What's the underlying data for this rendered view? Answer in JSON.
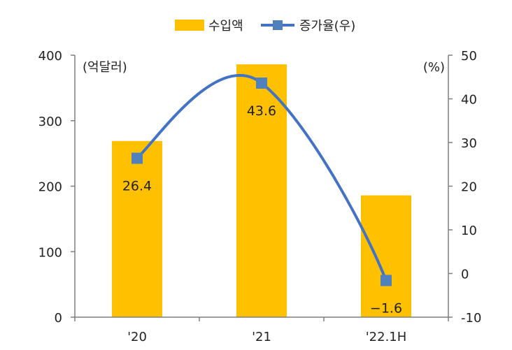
{
  "colors": {
    "bar": "#FFC000",
    "line": "#4472C4",
    "marker": "#4F81BD",
    "axis": "#7F7F7F",
    "text": "#222222"
  },
  "chart_data": {
    "type": "bar",
    "title": "",
    "categories": [
      "'20",
      "'21",
      "'22.1H"
    ],
    "series": [
      {
        "name": "수입액",
        "type": "bar",
        "axis": "left",
        "values": [
          269,
          386,
          186
        ]
      },
      {
        "name": "증가율(우)",
        "type": "line",
        "axis": "right",
        "values": [
          26.4,
          43.6,
          -1.6
        ],
        "data_labels": [
          "26.4",
          "43.6",
          "−1.6"
        ]
      }
    ],
    "y_left": {
      "label": "(억달러)",
      "ylim": [
        0,
        400
      ],
      "ticks": [
        0,
        100,
        200,
        300,
        400
      ]
    },
    "y_right": {
      "label": "(%)",
      "ylim": [
        -10,
        50
      ],
      "ticks": [
        -10,
        0,
        10,
        20,
        30,
        40,
        50
      ]
    },
    "legend": "top-center",
    "grid": false
  }
}
